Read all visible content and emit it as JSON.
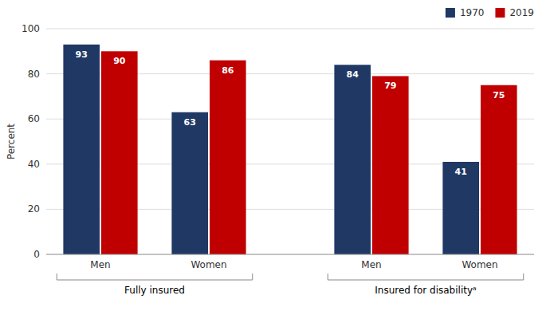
{
  "chart_data": {
    "type": "bar",
    "ylabel": "Percent",
    "categories": [
      "Men",
      "Women",
      "Men",
      "Women"
    ],
    "series": [
      {
        "name": "1970",
        "color": "#1f3864",
        "values": [
          93,
          63,
          84,
          41
        ]
      },
      {
        "name": "2019",
        "color": "#c00000",
        "values": [
          90,
          86,
          79,
          75
        ]
      }
    ],
    "ylim": [
      0,
      100
    ],
    "yticks": [
      0,
      20,
      40,
      60,
      80,
      100
    ],
    "grid": true,
    "legend": "upper right",
    "data_labels": true,
    "annotations": [
      "Fully insured",
      "Insured for disabilityᵃ"
    ]
  }
}
